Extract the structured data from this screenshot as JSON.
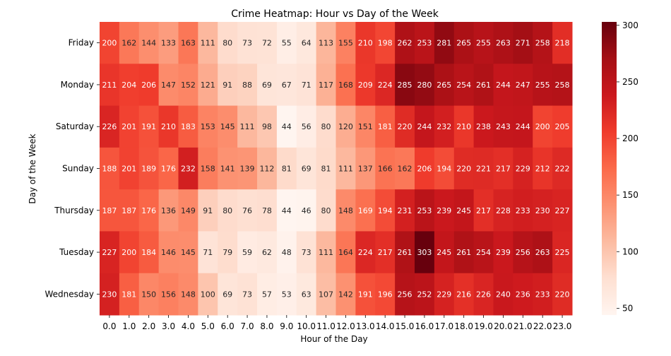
{
  "chart_data": {
    "type": "heatmap",
    "title": "Crime Heatmap: Hour vs Day of the Week",
    "xlabel": "Hour of the Day",
    "ylabel": "Day of the Week",
    "x": [
      "0.0",
      "1.0",
      "2.0",
      "3.0",
      "4.0",
      "5.0",
      "6.0",
      "7.0",
      "8.0",
      "9.0",
      "10.0",
      "11.0",
      "12.0",
      "13.0",
      "14.0",
      "15.0",
      "16.0",
      "17.0",
      "18.0",
      "19.0",
      "20.0",
      "21.0",
      "22.0",
      "23.0"
    ],
    "y": [
      "Friday",
      "Monday",
      "Saturday",
      "Sunday",
      "Thursday",
      "Tuesday",
      "Wednesday"
    ],
    "values": [
      [
        200,
        162,
        144,
        133,
        163,
        111,
        80,
        73,
        72,
        55,
        64,
        113,
        155,
        210,
        198,
        262,
        253,
        281,
        265,
        255,
        263,
        271,
        258,
        218
      ],
      [
        211,
        204,
        206,
        147,
        152,
        121,
        91,
        88,
        69,
        67,
        71,
        117,
        168,
        209,
        224,
        285,
        280,
        265,
        254,
        261,
        244,
        247,
        255,
        258
      ],
      [
        226,
        201,
        191,
        210,
        183,
        153,
        145,
        111,
        98,
        44,
        56,
        80,
        120,
        151,
        181,
        220,
        244,
        232,
        210,
        238,
        243,
        244,
        200,
        205
      ],
      [
        188,
        201,
        189,
        176,
        232,
        158,
        141,
        139,
        112,
        81,
        69,
        81,
        111,
        137,
        166,
        162,
        206,
        194,
        220,
        221,
        217,
        229,
        212,
        222
      ],
      [
        187,
        187,
        176,
        136,
        149,
        91,
        80,
        76,
        78,
        44,
        46,
        80,
        148,
        169,
        194,
        231,
        253,
        239,
        245,
        217,
        228,
        233,
        230,
        227
      ],
      [
        227,
        200,
        184,
        146,
        145,
        71,
        79,
        59,
        62,
        48,
        73,
        111,
        164,
        224,
        217,
        261,
        303,
        245,
        261,
        254,
        239,
        256,
        263,
        225
      ],
      [
        230,
        181,
        150,
        156,
        148,
        100,
        69,
        73,
        57,
        53,
        63,
        107,
        142,
        191,
        196,
        256,
        252,
        229,
        216,
        226,
        240,
        236,
        233,
        220
      ]
    ],
    "colorbar": {
      "min": 44,
      "max": 303,
      "ticks": [
        50,
        100,
        150,
        200,
        250,
        300
      ]
    },
    "colormap": "Reds",
    "colors": [
      "#fff5f0",
      "#fee0d2",
      "#fcbba1",
      "#fc9272",
      "#fb6a4a",
      "#ef3b2c",
      "#cb181d",
      "#a50f15",
      "#67000d"
    ],
    "grid": false
  }
}
